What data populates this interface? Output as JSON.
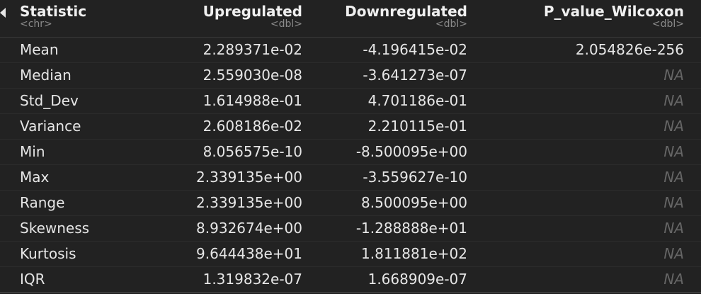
{
  "table": {
    "columns": [
      {
        "name": "Statistic",
        "type": "<chr>"
      },
      {
        "name": "Upregulated",
        "type": "<dbl>"
      },
      {
        "name": "Downregulated",
        "type": "<dbl>"
      },
      {
        "name": "P_value_Wilcoxon",
        "type": "<dbl>"
      }
    ],
    "rows": [
      {
        "statistic": "Mean",
        "upregulated": "2.289371e-02",
        "downregulated": "-4.196415e-02",
        "p_value": "2.054826e-256"
      },
      {
        "statistic": "Median",
        "upregulated": "2.559030e-08",
        "downregulated": "-3.641273e-07",
        "p_value": "NA"
      },
      {
        "statistic": "Std_Dev",
        "upregulated": "1.614988e-01",
        "downregulated": "4.701186e-01",
        "p_value": "NA"
      },
      {
        "statistic": "Variance",
        "upregulated": "2.608186e-02",
        "downregulated": "2.210115e-01",
        "p_value": "NA"
      },
      {
        "statistic": "Min",
        "upregulated": "8.056575e-10",
        "downregulated": "-8.500095e+00",
        "p_value": "NA"
      },
      {
        "statistic": "Max",
        "upregulated": "2.339135e+00",
        "downregulated": "-3.559627e-10",
        "p_value": "NA"
      },
      {
        "statistic": "Range",
        "upregulated": "2.339135e+00",
        "downregulated": "8.500095e+00",
        "p_value": "NA"
      },
      {
        "statistic": "Skewness",
        "upregulated": "8.932674e+00",
        "downregulated": "-1.288888e+01",
        "p_value": "NA"
      },
      {
        "statistic": "Kurtosis",
        "upregulated": "9.644438e+01",
        "downregulated": "1.811881e+02",
        "p_value": "NA"
      },
      {
        "statistic": "IQR",
        "upregulated": "1.319832e-07",
        "downregulated": "1.668909e-07",
        "p_value": "NA"
      }
    ]
  },
  "icons": {
    "collapse": "triangle-left-icon"
  },
  "colors": {
    "background": "#222222",
    "text": "#e6e6e6",
    "type_label": "#8a8a8a",
    "na_text": "#666666"
  }
}
